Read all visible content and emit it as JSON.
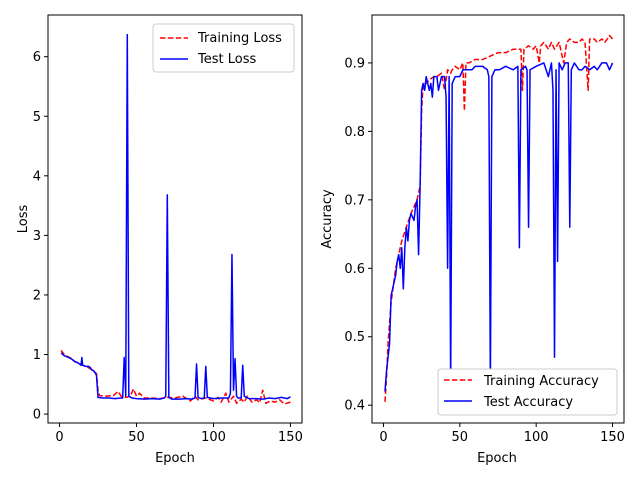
{
  "chart_data": [
    {
      "type": "line",
      "xlabel": "Epoch",
      "ylabel": "Loss",
      "xlim": [
        -7.5,
        157.5
      ],
      "ylim": [
        -0.15,
        6.7
      ],
      "xticks": [
        0,
        50,
        100,
        150
      ],
      "yticks": [
        0,
        1,
        2,
        3,
        4,
        5,
        6
      ],
      "legend_position": "upper right",
      "series": [
        {
          "name": "Training Loss",
          "color": "#ff0000",
          "style": "dashed",
          "points": [
            [
              1,
              1.07
            ],
            [
              3,
              1.0
            ],
            [
              5,
              0.97
            ],
            [
              8,
              0.93
            ],
            [
              10,
              0.88
            ],
            [
              12,
              0.86
            ],
            [
              15,
              0.82
            ],
            [
              18,
              0.79
            ],
            [
              20,
              0.76
            ],
            [
              22,
              0.72
            ],
            [
              24,
              0.68
            ],
            [
              25,
              0.4
            ],
            [
              26,
              0.31
            ],
            [
              30,
              0.3
            ],
            [
              35,
              0.31
            ],
            [
              38,
              0.38
            ],
            [
              40,
              0.3
            ],
            [
              43,
              0.28
            ],
            [
              46,
              0.3
            ],
            [
              48,
              0.42
            ],
            [
              50,
              0.3
            ],
            [
              52,
              0.35
            ],
            [
              55,
              0.27
            ],
            [
              60,
              0.27
            ],
            [
              65,
              0.26
            ],
            [
              70,
              0.28
            ],
            [
              75,
              0.27
            ],
            [
              80,
              0.3
            ],
            [
              85,
              0.22
            ],
            [
              88,
              0.3
            ],
            [
              90,
              0.24
            ],
            [
              95,
              0.27
            ],
            [
              100,
              0.22
            ],
            [
              103,
              0.28
            ],
            [
              105,
              0.2
            ],
            [
              108,
              0.35
            ],
            [
              110,
              0.2
            ],
            [
              113,
              0.3
            ],
            [
              115,
              0.18
            ],
            [
              118,
              0.25
            ],
            [
              120,
              0.2
            ],
            [
              122,
              0.3
            ],
            [
              125,
              0.2
            ],
            [
              128,
              0.24
            ],
            [
              130,
              0.19
            ],
            [
              132,
              0.4
            ],
            [
              134,
              0.18
            ],
            [
              137,
              0.22
            ],
            [
              140,
              0.2
            ],
            [
              143,
              0.24
            ],
            [
              146,
              0.17
            ],
            [
              150,
              0.2
            ]
          ]
        },
        {
          "name": "Test Loss",
          "color": "#0000ff",
          "style": "solid",
          "points": [
            [
              1,
              1.03
            ],
            [
              3,
              0.98
            ],
            [
              5,
              0.96
            ],
            [
              8,
              0.92
            ],
            [
              10,
              0.88
            ],
            [
              12,
              0.86
            ],
            [
              14,
              0.82
            ],
            [
              14.5,
              0.95
            ],
            [
              15,
              0.82
            ],
            [
              17,
              0.8
            ],
            [
              19,
              0.8
            ],
            [
              20,
              0.78
            ],
            [
              21,
              0.74
            ],
            [
              22,
              0.73
            ],
            [
              23,
              0.7
            ],
            [
              24,
              0.65
            ],
            [
              25,
              0.28
            ],
            [
              28,
              0.27
            ],
            [
              32,
              0.27
            ],
            [
              36,
              0.26
            ],
            [
              40,
              0.27
            ],
            [
              41,
              0.27
            ],
            [
              42,
              0.95
            ],
            [
              43,
              0.3
            ],
            [
              44,
              6.37
            ],
            [
              45,
              0.3
            ],
            [
              47,
              0.27
            ],
            [
              50,
              0.26
            ],
            [
              55,
              0.25
            ],
            [
              60,
              0.26
            ],
            [
              65,
              0.25
            ],
            [
              68,
              0.27
            ],
            [
              69,
              0.3
            ],
            [
              70,
              3.68
            ],
            [
              71,
              0.28
            ],
            [
              73,
              0.25
            ],
            [
              78,
              0.25
            ],
            [
              82,
              0.26
            ],
            [
              86,
              0.25
            ],
            [
              88,
              0.27
            ],
            [
              89,
              0.84
            ],
            [
              90,
              0.28
            ],
            [
              92,
              0.26
            ],
            [
              94,
              0.27
            ],
            [
              95,
              0.8
            ],
            [
              96,
              0.28
            ],
            [
              100,
              0.26
            ],
            [
              105,
              0.27
            ],
            [
              110,
              0.27
            ],
            [
              111,
              0.35
            ],
            [
              112,
              2.68
            ],
            [
              113,
              0.4
            ],
            [
              114,
              0.93
            ],
            [
              115,
              0.3
            ],
            [
              116,
              0.27
            ],
            [
              118,
              0.27
            ],
            [
              119,
              0.82
            ],
            [
              120,
              0.3
            ],
            [
              123,
              0.26
            ],
            [
              128,
              0.26
            ],
            [
              132,
              0.25
            ],
            [
              136,
              0.27
            ],
            [
              140,
              0.26
            ],
            [
              144,
              0.28
            ],
            [
              148,
              0.26
            ],
            [
              150,
              0.29
            ]
          ]
        }
      ]
    },
    {
      "type": "line",
      "xlabel": "Epoch",
      "ylabel": "Accuracy",
      "xlim": [
        -7.5,
        157.5
      ],
      "ylim": [
        0.374,
        0.97
      ],
      "xticks": [
        0,
        50,
        100,
        150
      ],
      "yticks": [
        0.4,
        0.5,
        0.6,
        0.7,
        0.8,
        0.9
      ],
      "legend_position": "lower right",
      "series": [
        {
          "name": "Training Accuracy",
          "color": "#ff0000",
          "style": "dashed",
          "points": [
            [
              1,
              0.405
            ],
            [
              2,
              0.44
            ],
            [
              3,
              0.49
            ],
            [
              5,
              0.55
            ],
            [
              8,
              0.6
            ],
            [
              10,
              0.62
            ],
            [
              12,
              0.64
            ],
            [
              15,
              0.66
            ],
            [
              18,
              0.68
            ],
            [
              20,
              0.69
            ],
            [
              22,
              0.7
            ],
            [
              24,
              0.72
            ],
            [
              25,
              0.83
            ],
            [
              26,
              0.87
            ],
            [
              28,
              0.87
            ],
            [
              30,
              0.875
            ],
            [
              33,
              0.88
            ],
            [
              35,
              0.88
            ],
            [
              38,
              0.885
            ],
            [
              40,
              0.86
            ],
            [
              42,
              0.89
            ],
            [
              44,
              0.885
            ],
            [
              45,
              0.89
            ],
            [
              47,
              0.895
            ],
            [
              50,
              0.89
            ],
            [
              52,
              0.9
            ],
            [
              53,
              0.83
            ],
            [
              54,
              0.9
            ],
            [
              56,
              0.9
            ],
            [
              60,
              0.905
            ],
            [
              65,
              0.905
            ],
            [
              70,
              0.91
            ],
            [
              75,
              0.915
            ],
            [
              80,
              0.915
            ],
            [
              85,
              0.92
            ],
            [
              88,
              0.92
            ],
            [
              90,
              0.92
            ],
            [
              91,
              0.86
            ],
            [
              92,
              0.92
            ],
            [
              95,
              0.925
            ],
            [
              98,
              0.92
            ],
            [
              100,
              0.925
            ],
            [
              102,
              0.9
            ],
            [
              103,
              0.925
            ],
            [
              105,
              0.93
            ],
            [
              108,
              0.92
            ],
            [
              110,
              0.93
            ],
            [
              112,
              0.92
            ],
            [
              115,
              0.93
            ],
            [
              118,
              0.9
            ],
            [
              120,
              0.93
            ],
            [
              122,
              0.935
            ],
            [
              125,
              0.93
            ],
            [
              128,
              0.93
            ],
            [
              130,
              0.935
            ],
            [
              132,
              0.93
            ],
            [
              134,
              0.86
            ],
            [
              135,
              0.935
            ],
            [
              138,
              0.935
            ],
            [
              140,
              0.93
            ],
            [
              143,
              0.935
            ],
            [
              145,
              0.93
            ],
            [
              148,
              0.94
            ],
            [
              150,
              0.935
            ]
          ]
        },
        {
          "name": "Test Accuracy",
          "color": "#0000ff",
          "style": "solid",
          "points": [
            [
              1,
              0.42
            ],
            [
              2,
              0.45
            ],
            [
              3,
              0.47
            ],
            [
              4,
              0.49
            ],
            [
              5,
              0.56
            ],
            [
              7,
              0.58
            ],
            [
              8,
              0.59
            ],
            [
              9,
              0.61
            ],
            [
              10,
              0.62
            ],
            [
              11,
              0.6
            ],
            [
              12,
              0.63
            ],
            [
              13,
              0.57
            ],
            [
              14,
              0.63
            ],
            [
              15,
              0.66
            ],
            [
              16,
              0.64
            ],
            [
              17,
              0.67
            ],
            [
              18,
              0.68
            ],
            [
              20,
              0.67
            ],
            [
              21,
              0.69
            ],
            [
              22,
              0.7
            ],
            [
              23,
              0.62
            ],
            [
              24,
              0.72
            ],
            [
              25,
              0.86
            ],
            [
              26,
              0.87
            ],
            [
              27,
              0.86
            ],
            [
              28,
              0.88
            ],
            [
              30,
              0.86
            ],
            [
              31,
              0.87
            ],
            [
              32,
              0.85
            ],
            [
              33,
              0.88
            ],
            [
              35,
              0.88
            ],
            [
              36,
              0.86
            ],
            [
              38,
              0.88
            ],
            [
              40,
              0.88
            ],
            [
              41,
              0.85
            ],
            [
              42,
              0.6
            ],
            [
              43,
              0.88
            ],
            [
              44,
              0.43
            ],
            [
              45,
              0.87
            ],
            [
              47,
              0.88
            ],
            [
              50,
              0.88
            ],
            [
              52,
              0.89
            ],
            [
              55,
              0.89
            ],
            [
              58,
              0.89
            ],
            [
              60,
              0.895
            ],
            [
              65,
              0.895
            ],
            [
              68,
              0.89
            ],
            [
              69,
              0.88
            ],
            [
              70,
              0.43
            ],
            [
              71,
              0.88
            ],
            [
              73,
              0.89
            ],
            [
              76,
              0.89
            ],
            [
              80,
              0.895
            ],
            [
              85,
              0.89
            ],
            [
              88,
              0.895
            ],
            [
              89,
              0.63
            ],
            [
              90,
              0.89
            ],
            [
              93,
              0.895
            ],
            [
              94,
              0.89
            ],
            [
              95,
              0.66
            ],
            [
              96,
              0.89
            ],
            [
              100,
              0.895
            ],
            [
              105,
              0.9
            ],
            [
              108,
              0.88
            ],
            [
              110,
              0.9
            ],
            [
              111,
              0.86
            ],
            [
              112,
              0.47
            ],
            [
              113,
              0.89
            ],
            [
              114,
              0.61
            ],
            [
              115,
              0.9
            ],
            [
              117,
              0.89
            ],
            [
              119,
              0.9
            ],
            [
              121,
              0.9
            ],
            [
              122,
              0.66
            ],
            [
              123,
              0.89
            ],
            [
              125,
              0.9
            ],
            [
              128,
              0.89
            ],
            [
              130,
              0.89
            ],
            [
              132,
              0.895
            ],
            [
              135,
              0.89
            ],
            [
              138,
              0.895
            ],
            [
              140,
              0.89
            ],
            [
              143,
              0.9
            ],
            [
              146,
              0.9
            ],
            [
              148,
              0.89
            ],
            [
              150,
              0.9
            ]
          ]
        }
      ]
    }
  ]
}
